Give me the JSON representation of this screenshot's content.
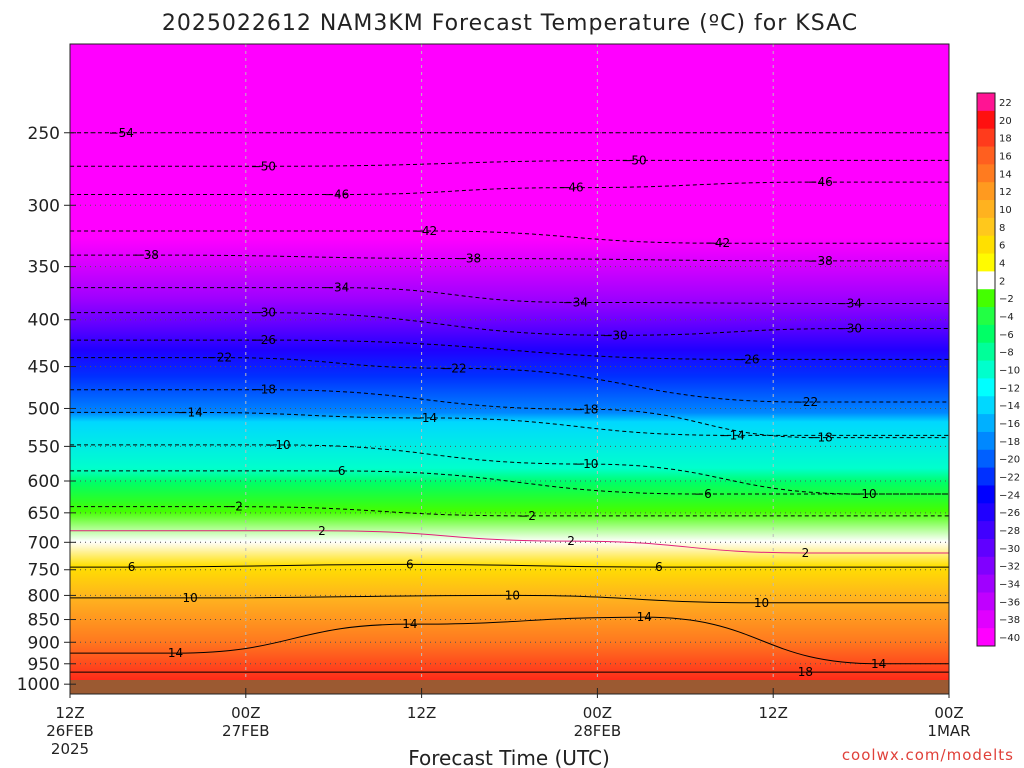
{
  "title": "2025022612 NAM3KM Forecast Temperature (ºC) for KSAC",
  "xlabel": "Forecast Time (UTC)",
  "credit": "coolwx.com/modelts",
  "chart_data": {
    "type": "heatmap",
    "title": "2025022612 NAM3KM Forecast Temperature (ºC) for KSAC",
    "xlabel": "Forecast Time (UTC)",
    "ylabel": "",
    "x_ticks": [
      {
        "hour": 0,
        "label": [
          "12Z",
          "26FEB",
          "2025"
        ]
      },
      {
        "hour": 12,
        "label": [
          "00Z",
          "27FEB"
        ]
      },
      {
        "hour": 24,
        "label": [
          "12Z"
        ]
      },
      {
        "hour": 36,
        "label": [
          "00Z",
          "28FEB"
        ]
      },
      {
        "hour": 48,
        "label": [
          "12Z"
        ]
      },
      {
        "hour": 60,
        "label": [
          "00Z",
          "1MAR"
        ]
      }
    ],
    "xlim": [
      0,
      60
    ],
    "y_scale": "log-pressure (hPa, inverted)",
    "ylim": [
      1025,
      200
    ],
    "y_ticks": [
      250,
      300,
      350,
      400,
      450,
      500,
      550,
      600,
      650,
      700,
      750,
      800,
      850,
      900,
      950,
      1000
    ],
    "grid": true,
    "colorbar": {
      "placement": "right",
      "ticks": [
        22,
        20,
        18,
        16,
        14,
        12,
        10,
        8,
        6,
        4,
        2,
        -2,
        -4,
        -6,
        -8,
        -10,
        -12,
        -14,
        -16,
        -18,
        -20,
        -22,
        -24,
        -26,
        -28,
        -30,
        -32,
        -34,
        -36,
        -38,
        -40
      ],
      "colors": [
        "#ff1493",
        "#ff1010",
        "#ff3b1c",
        "#ff5f1f",
        "#ff7b1f",
        "#ff9a1f",
        "#ffb21f",
        "#ffc81c",
        "#ffe000",
        "#fffb00",
        "#ffffff",
        "#44ff00",
        "#22ff44",
        "#00ff66",
        "#00ff99",
        "#00ffcc",
        "#00ffff",
        "#00d8ff",
        "#00b0ff",
        "#0088ff",
        "#0060ff",
        "#0030ff",
        "#0000ff",
        "#2000ff",
        "#4000ff",
        "#6000ff",
        "#8000ff",
        "#a000ff",
        "#c000ff",
        "#e000ff",
        "#ff00ff"
      ]
    },
    "freezing_contour_label": "2",
    "isotherms": [
      {
        "level": -54,
        "labels": [
          {
            "hour": 3.5,
            "p": 250
          }
        ]
      },
      {
        "level": -50,
        "labels": [
          {
            "hour": 13.2,
            "p": 272
          },
          {
            "hour": 38.5,
            "p": 268
          }
        ]
      },
      {
        "level": -46,
        "labels": [
          {
            "hour": 18.2,
            "p": 292
          },
          {
            "hour": 34.2,
            "p": 287
          },
          {
            "hour": 51.2,
            "p": 283
          }
        ]
      },
      {
        "level": -42,
        "labels": [
          {
            "hour": 24.2,
            "p": 320
          },
          {
            "hour": 44.2,
            "p": 330
          }
        ]
      },
      {
        "level": -38,
        "labels": [
          {
            "hour": 5.2,
            "p": 340
          },
          {
            "hour": 27.2,
            "p": 343
          },
          {
            "hour": 51.2,
            "p": 345
          }
        ]
      },
      {
        "level": -34,
        "labels": [
          {
            "hour": 18.2,
            "p": 369
          },
          {
            "hour": 34.5,
            "p": 383
          },
          {
            "hour": 53.2,
            "p": 384
          }
        ]
      },
      {
        "level": -30,
        "labels": [
          {
            "hour": 13.2,
            "p": 393
          },
          {
            "hour": 37.2,
            "p": 416
          },
          {
            "hour": 53.2,
            "p": 409
          }
        ]
      },
      {
        "level": -26,
        "labels": [
          {
            "hour": 13.2,
            "p": 421
          },
          {
            "hour": 46.2,
            "p": 442
          }
        ]
      },
      {
        "level": -22,
        "labels": [
          {
            "hour": 10.2,
            "p": 440
          },
          {
            "hour": 26.2,
            "p": 452
          },
          {
            "hour": 50.2,
            "p": 492
          }
        ]
      },
      {
        "level": -18,
        "labels": [
          {
            "hour": 13.2,
            "p": 477
          },
          {
            "hour": 35.2,
            "p": 501
          },
          {
            "hour": 51.2,
            "p": 538
          }
        ]
      },
      {
        "level": -14,
        "labels": [
          {
            "hour": 8.2,
            "p": 505
          },
          {
            "hour": 24.2,
            "p": 512
          },
          {
            "hour": 45.2,
            "p": 535
          }
        ]
      },
      {
        "level": -10,
        "labels": [
          {
            "hour": 14.2,
            "p": 548
          },
          {
            "hour": 35.2,
            "p": 575
          },
          {
            "hour": 54.2,
            "p": 620
          }
        ]
      },
      {
        "level": -6,
        "labels": [
          {
            "hour": 18.2,
            "p": 585
          },
          {
            "hour": 43.2,
            "p": 620
          }
        ]
      },
      {
        "level": -2,
        "labels": [
          {
            "hour": 11.2,
            "p": 640
          },
          {
            "hour": 31.2,
            "p": 655
          }
        ]
      },
      {
        "level": 2,
        "labels": [
          {
            "hour": 17.2,
            "p": 680
          },
          {
            "hour": 34.2,
            "p": 698
          },
          {
            "hour": 50.2,
            "p": 719
          }
        ]
      },
      {
        "level": 6,
        "labels": [
          {
            "hour": 4.2,
            "p": 745
          },
          {
            "hour": 23.2,
            "p": 740
          },
          {
            "hour": 40.2,
            "p": 745
          }
        ]
      },
      {
        "level": 10,
        "labels": [
          {
            "hour": 8.2,
            "p": 805
          },
          {
            "hour": 30.2,
            "p": 800
          },
          {
            "hour": 47.2,
            "p": 815
          }
        ]
      },
      {
        "level": 14,
        "labels": [
          {
            "hour": 7.2,
            "p": 925
          },
          {
            "hour": 23.2,
            "p": 860
          },
          {
            "hour": 39.2,
            "p": 845
          },
          {
            "hour": 55.2,
            "p": 950
          }
        ]
      },
      {
        "level": 18,
        "labels": [
          {
            "hour": 50.2,
            "p": 970
          }
        ]
      }
    ]
  }
}
